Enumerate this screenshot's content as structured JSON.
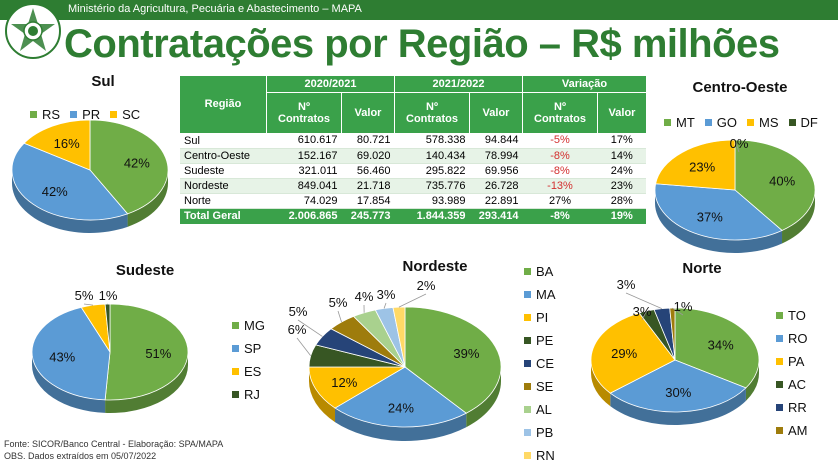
{
  "header": {
    "ministry": "Ministério da Agricultura, Pecuária e Abastecimento – MAPA",
    "title": "Contratações por Região – R$ milhões"
  },
  "table": {
    "group_headers": [
      "2020/2021",
      "2021/2022",
      "Variação"
    ],
    "headers": [
      "Região",
      "Nº Contratos",
      "Valor",
      "Nº Contratos",
      "Valor",
      "Nº Contratos",
      "Valor"
    ],
    "rows": [
      [
        "Sul",
        "610.617",
        "80.721",
        "578.338",
        "94.844",
        "-5%",
        "17%"
      ],
      [
        "Centro-Oeste",
        "152.167",
        "69.020",
        "140.434",
        "78.994",
        "-8%",
        "14%"
      ],
      [
        "Sudeste",
        "321.011",
        "56.460",
        "295.822",
        "69.956",
        "-8%",
        "24%"
      ],
      [
        "Nordeste",
        "849.041",
        "21.718",
        "735.776",
        "26.728",
        "-13%",
        "23%"
      ],
      [
        "Norte",
        "74.029",
        "17.854",
        "93.989",
        "22.891",
        "27%",
        "28%"
      ]
    ],
    "total": [
      "Total Geral",
      "2.006.865",
      "245.773",
      "1.844.359",
      "293.414",
      "-8%",
      "19%"
    ]
  },
  "colors": {
    "green": "#70ad47",
    "blue": "#5b9bd5",
    "yellow": "#ffc000",
    "darkgreen": "#375623",
    "navy": "#264478",
    "olive": "#9e7c0c",
    "lightgreen": "#a9d18e",
    "lightblue": "#9dc3e6",
    "lightyellow": "#ffd966"
  },
  "chart_data": [
    {
      "type": "pie",
      "title": "Sul",
      "legend": "top",
      "categories": [
        "RS",
        "PR",
        "SC"
      ],
      "values": [
        42,
        42,
        16
      ],
      "labels": [
        "42%",
        "42%",
        "16%"
      ],
      "colors": [
        "#70ad47",
        "#5b9bd5",
        "#ffc000"
      ]
    },
    {
      "type": "pie",
      "title": "Centro-Oeste",
      "legend": "top",
      "categories": [
        "MT",
        "GO",
        "MS",
        "DF"
      ],
      "values": [
        40,
        37,
        23,
        0
      ],
      "labels": [
        "40%",
        "37%",
        "23%",
        "0%"
      ],
      "colors": [
        "#70ad47",
        "#5b9bd5",
        "#ffc000",
        "#375623"
      ]
    },
    {
      "type": "pie",
      "title": "Sudeste",
      "legend": "right",
      "categories": [
        "MG",
        "SP",
        "ES",
        "RJ"
      ],
      "values": [
        51,
        43,
        5,
        1
      ],
      "labels": [
        "51%",
        "43%",
        "5%",
        "1%"
      ],
      "colors": [
        "#70ad47",
        "#5b9bd5",
        "#ffc000",
        "#375623"
      ]
    },
    {
      "type": "pie",
      "title": "Nordeste",
      "legend": "right",
      "categories": [
        "BA",
        "MA",
        "PI",
        "PE",
        "CE",
        "SE",
        "AL",
        "PB",
        "RN"
      ],
      "values": [
        39,
        24,
        12,
        6,
        5,
        5,
        4,
        3,
        2
      ],
      "labels": [
        "39%",
        "24%",
        "12%",
        "6%",
        "5%",
        "5%",
        "4%",
        "3%",
        "2%"
      ],
      "colors": [
        "#70ad47",
        "#5b9bd5",
        "#ffc000",
        "#375623",
        "#264478",
        "#9e7c0c",
        "#a9d18e",
        "#9dc3e6",
        "#ffd966"
      ]
    },
    {
      "type": "pie",
      "title": "Norte",
      "legend": "right",
      "categories": [
        "TO",
        "RO",
        "PA",
        "AC",
        "RR",
        "AM"
      ],
      "values": [
        34,
        30,
        29,
        3,
        3,
        1
      ],
      "labels": [
        "34%",
        "30%",
        "29%",
        "3%",
        "3%",
        "1%"
      ],
      "colors": [
        "#70ad47",
        "#5b9bd5",
        "#ffc000",
        "#375623",
        "#264478",
        "#9e7c0c"
      ]
    }
  ],
  "footer": {
    "source": "Fonte: SICOR/Banco Central - Elaboração: SPA/MAPA",
    "note": "OBS. Dados extraídos em 05/07/2022"
  }
}
